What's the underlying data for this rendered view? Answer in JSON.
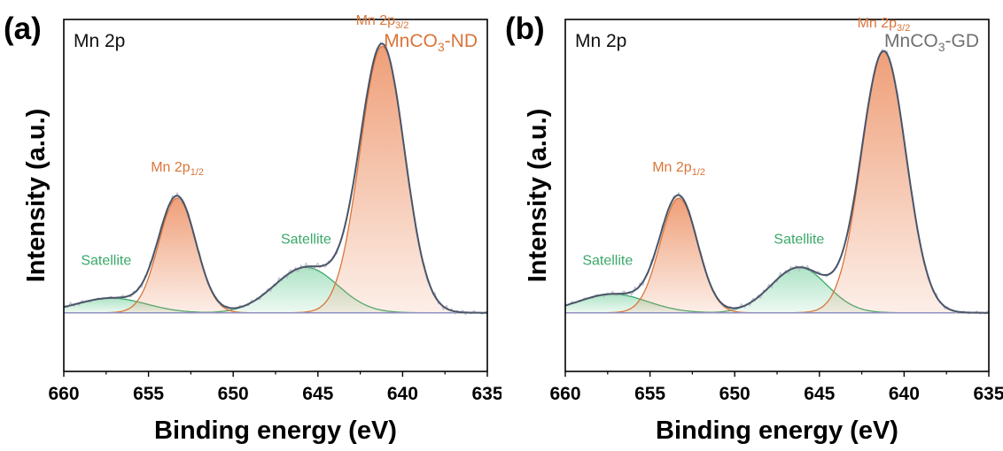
{
  "colors": {
    "peak_main": "#d9753a",
    "peak_fill": "#ed9469",
    "satellite": "#3aa86a",
    "satellite_fill": "#a9e2c2",
    "envelope": "#4a5568",
    "raw": "#b8b9c7",
    "baseline": "#8e92c8",
    "title_nd": "#d9753a",
    "title_gd": "#707070"
  },
  "chart_data": [
    {
      "type": "line",
      "panel_label": "(a)",
      "element_label": "Mn 2p",
      "sample": {
        "base": "MnCO",
        "sub": "3",
        "suffix": "-ND"
      },
      "xlabel": "Binding energy (eV)",
      "ylabel": "Intensity (a.u.)",
      "xlim": [
        660,
        635
      ],
      "x_reversed": true,
      "ylim": [
        -0.22,
        1.1
      ],
      "xticks": [
        660,
        655,
        650,
        645,
        640,
        635
      ],
      "baseline": 0,
      "peak_labels": [
        {
          "text": "Mn 2p",
          "sub": "3/2",
          "x": 641.2,
          "y": 1.08,
          "type": "main"
        },
        {
          "text": "Mn 2p",
          "sub": "1/2",
          "x": 653.3,
          "y": 0.53,
          "type": "main"
        },
        {
          "text": "Satellite",
          "x": 645.7,
          "y": 0.26,
          "type": "satellite"
        },
        {
          "text": "Satellite",
          "x": 657.5,
          "y": 0.18,
          "type": "satellite"
        }
      ],
      "series": [
        {
          "name": "Mn 2p3/2",
          "kind": "main",
          "center": 641.2,
          "height": 1.0,
          "fwhm": 3.1
        },
        {
          "name": "Mn 2p1/2",
          "kind": "main",
          "center": 653.3,
          "height": 0.43,
          "fwhm": 2.6
        },
        {
          "name": "Satellite",
          "kind": "satellite",
          "center": 645.7,
          "height": 0.17,
          "fwhm": 4.4
        },
        {
          "name": "Satellite",
          "kind": "satellite",
          "center": 657.2,
          "height": 0.055,
          "fwhm": 4.8
        }
      ]
    },
    {
      "type": "line",
      "panel_label": "(b)",
      "element_label": "Mn 2p",
      "sample": {
        "base": "MnCO",
        "sub": "3",
        "suffix": "-GD"
      },
      "xlabel": "Binding energy (eV)",
      "ylabel": "Intensity (a.u.)",
      "xlim": [
        660,
        635
      ],
      "x_reversed": true,
      "ylim": [
        -0.22,
        1.1
      ],
      "xticks": [
        660,
        655,
        650,
        645,
        640,
        635
      ],
      "baseline": 0,
      "peak_labels": [
        {
          "text": "Mn 2p",
          "sub": "3/2",
          "x": 641.2,
          "y": 1.07,
          "type": "main"
        },
        {
          "text": "Mn 2p",
          "sub": "1/2",
          "x": 653.3,
          "y": 0.53,
          "type": "main"
        },
        {
          "text": "Satellite",
          "x": 646.2,
          "y": 0.26,
          "type": "satellite"
        },
        {
          "text": "Satellite",
          "x": 657.5,
          "y": 0.18,
          "type": "satellite"
        }
      ],
      "series": [
        {
          "name": "Mn 2p3/2",
          "kind": "main",
          "center": 641.2,
          "height": 0.98,
          "fwhm": 3.1
        },
        {
          "name": "Mn 2p1/2",
          "kind": "main",
          "center": 653.3,
          "height": 0.43,
          "fwhm": 2.6
        },
        {
          "name": "Satellite",
          "kind": "satellite",
          "center": 646.2,
          "height": 0.17,
          "fwhm": 3.9
        },
        {
          "name": "Satellite",
          "kind": "satellite",
          "center": 657.2,
          "height": 0.07,
          "fwhm": 4.8
        }
      ]
    }
  ]
}
